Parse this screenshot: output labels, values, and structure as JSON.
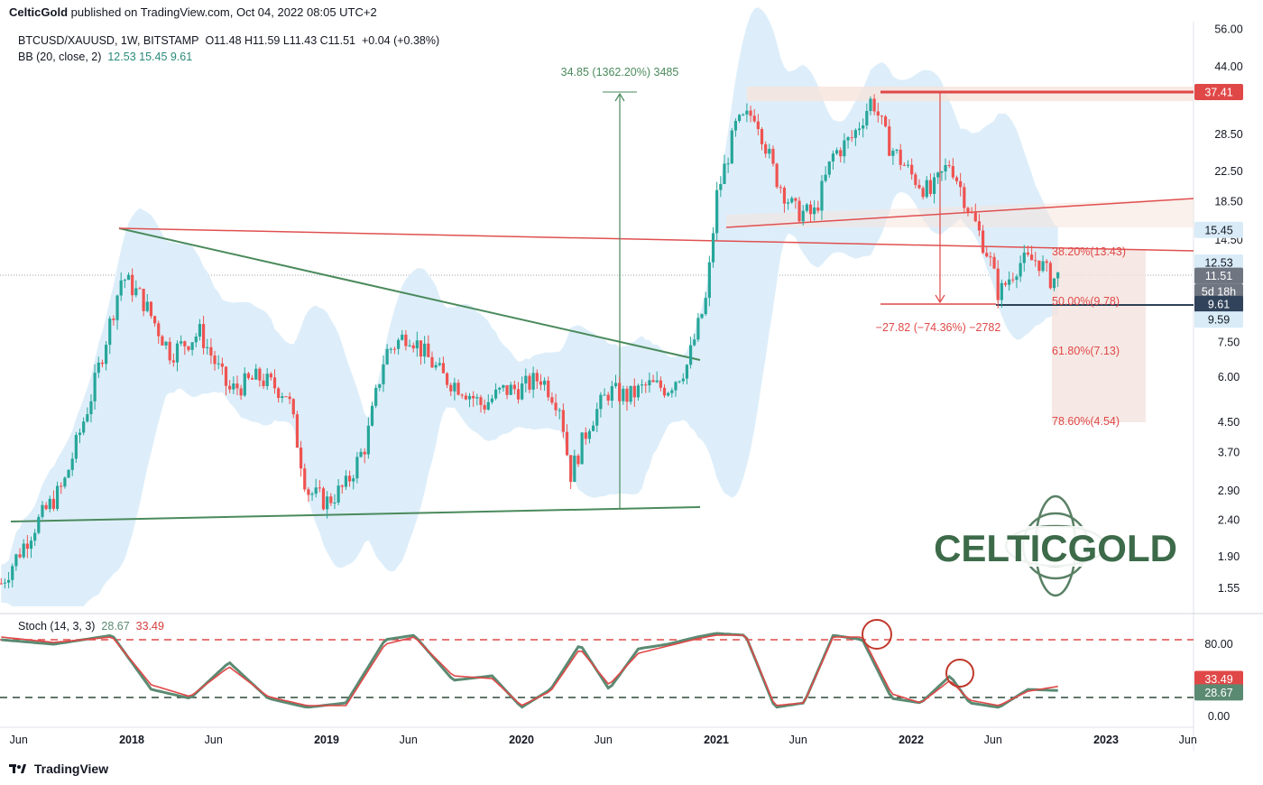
{
  "header": {
    "publisher": "CelticGold",
    "published_text": "published on TradingView.com, Oct 04, 2022 08:05 UTC+2"
  },
  "legend": {
    "symbol_line": "BTCUSD/XAUUSD, 1W, BITSTAMP",
    "ohlc": "O11.48  H11.59  L11.43  C11.51",
    "change": "+0.04 (+0.38%)",
    "bb_label": "BB (20, close, 2)",
    "bb_values": "12.53  15.45  9.61",
    "stoch_label": "Stoch (14, 3, 3)",
    "stoch_k": "28.67",
    "stoch_d": "33.49"
  },
  "annotations": {
    "measure_up": "34.85 (1362.20%) 3485",
    "measure_down": "−27.82 (−74.36%) −2782",
    "fib_38": "38.20%(13.43)",
    "fib_50": "50.00%(9.78)",
    "fib_618": "61.80%(7.13)",
    "fib_786": "78.60%(4.54)"
  },
  "price_badges": [
    {
      "label": "37.41",
      "price": 37.41,
      "bg": "#e04848",
      "fg": "#ffffff"
    },
    {
      "label": "15.45",
      "price": 15.45,
      "bg": "#d8ebf7",
      "fg": "#131722"
    },
    {
      "label": "12.53",
      "price": 12.53,
      "bg": "#d8ebf7",
      "fg": "#131722"
    },
    {
      "label": "11.51",
      "price": 11.51,
      "bg": "#6f7581",
      "fg": "#ffffff"
    },
    {
      "label": "9.61",
      "price": 9.61,
      "bg": "#31435a",
      "fg": "#ffffff"
    },
    {
      "label": "9.59",
      "price": 9.59,
      "bg": "#d8ebf7",
      "fg": "#131722"
    }
  ],
  "countdown_label": "5d 18h",
  "stoch_badges": [
    {
      "label": "33.49",
      "value": 33.49,
      "bg": "#e04848",
      "fg": "#ffffff"
    },
    {
      "label": "28.67",
      "value": 28.67,
      "bg": "#5b8a72",
      "fg": "#ffffff"
    }
  ],
  "watermark": "CELTICGOLD",
  "footer": {
    "brand": "TradingView"
  },
  "colors": {
    "up": "#26a69a",
    "down": "#ef5350",
    "bb_fill": "#ddeefa",
    "trend_green": "#4a8a5c",
    "trend_red": "#e05050",
    "stoch_k": "#5b8a72",
    "stoch_d": "#e04848"
  },
  "chart_data": [
    {
      "type": "line",
      "title": "BTCUSD/XAUUSD, 1W, BITSTAMP",
      "scale": "log",
      "y_ticks": [
        56.0,
        44.0,
        37.41,
        28.5,
        22.5,
        18.5,
        14.5,
        7.5,
        6.0,
        4.5,
        3.7,
        2.9,
        2.4,
        1.9,
        1.55
      ],
      "x_ticks": [
        "Jun",
        "2018",
        "Jun",
        "2019",
        "Jun",
        "2020",
        "Jun",
        "2021",
        "Jun",
        "2022",
        "Jun",
        "2023",
        "Jun"
      ],
      "x_tick_years": [
        2017.42,
        2018.0,
        2018.42,
        2019.0,
        2019.42,
        2020.0,
        2020.42,
        2021.0,
        2021.42,
        2022.0,
        2022.42,
        2023.0,
        2023.42
      ],
      "series": [
        {
          "name": "",
          "x": [
            2017.33,
            2017.5,
            2017.65,
            2017.8,
            2017.95,
            2018.05,
            2018.2,
            2018.35,
            2018.5,
            2018.65,
            2018.8,
            2018.9,
            2019.0,
            2019.1,
            2019.2,
            2019.3,
            2019.42,
            2019.5,
            2019.6,
            2019.7,
            2019.8,
            2019.9,
            2020.0,
            2020.1,
            2020.2,
            2020.25,
            2020.35,
            2020.45,
            2020.55,
            2020.65,
            2020.75,
            2020.85,
            2020.95,
            2021.0,
            2021.1,
            2021.2,
            2021.3,
            2021.4,
            2021.5,
            2021.6,
            2021.7,
            2021.8,
            2021.88,
            2022.0,
            2022.1,
            2022.2,
            2022.3,
            2022.4,
            2022.45,
            2022.55,
            2022.65,
            2022.72,
            2022.76
          ],
          "values": [
            1.6,
            2.3,
            3.0,
            5.5,
            11.5,
            10.0,
            7.0,
            8.0,
            5.5,
            6.0,
            5.4,
            2.9,
            2.7,
            3.0,
            3.9,
            7.0,
            8.0,
            7.0,
            6.0,
            5.6,
            5.0,
            5.5,
            5.6,
            6.0,
            5.0,
            3.2,
            4.5,
            5.5,
            5.3,
            5.7,
            5.6,
            6.5,
            10.0,
            19.0,
            30.0,
            33.0,
            22.0,
            17.5,
            17.0,
            25.0,
            28.0,
            36.0,
            27.0,
            22.0,
            19.5,
            24.0,
            17.5,
            13.0,
            10.2,
            12.5,
            12.8,
            11.2,
            11.51
          ]
        }
      ],
      "levels": {
        "resistance": 37.41,
        "fib_38_2": 13.43,
        "fib_50": 9.78,
        "fib_61_8": 7.13,
        "fib_78_6": 4.54
      }
    },
    {
      "type": "line",
      "title": "Stoch (14, 3, 3)",
      "y_ticks": [
        80.0,
        0.0
      ],
      "ylim": [
        0,
        100
      ],
      "series": [
        {
          "name": "",
          "x": [
            2017.33,
            2017.6,
            2017.9,
            2018.1,
            2018.3,
            2018.5,
            2018.7,
            2018.9,
            2019.1,
            2019.3,
            2019.45,
            2019.65,
            2019.85,
            2020.0,
            2020.15,
            2020.3,
            2020.45,
            2020.6,
            2020.75,
            2020.9,
            2021.0,
            2021.15,
            2021.3,
            2021.45,
            2021.6,
            2021.75,
            2021.9,
            2022.05,
            2022.2,
            2022.3,
            2022.45,
            2022.6,
            2022.76
          ],
          "values": [
            85,
            80,
            90,
            30,
            20,
            60,
            20,
            10,
            15,
            85,
            90,
            40,
            45,
            10,
            30,
            80,
            30,
            75,
            80,
            88,
            92,
            90,
            10,
            15,
            90,
            85,
            20,
            15,
            45,
            15,
            10,
            30,
            28.67
          ]
        },
        {
          "name": "",
          "x": [
            2017.33,
            2017.6,
            2017.9,
            2018.1,
            2018.3,
            2018.5,
            2018.7,
            2018.9,
            2019.1,
            2019.3,
            2019.45,
            2019.65,
            2019.85,
            2020.0,
            2020.15,
            2020.3,
            2020.45,
            2020.6,
            2020.75,
            2020.9,
            2021.0,
            2021.15,
            2021.3,
            2021.45,
            2021.6,
            2021.75,
            2021.9,
            2022.05,
            2022.2,
            2022.3,
            2022.45,
            2022.6,
            2022.76
          ],
          "values": [
            88,
            82,
            88,
            35,
            22,
            55,
            22,
            12,
            12,
            80,
            88,
            45,
            42,
            12,
            28,
            75,
            35,
            70,
            78,
            86,
            90,
            90,
            12,
            15,
            88,
            88,
            25,
            15,
            40,
            18,
            12,
            28,
            33.49
          ]
        }
      ]
    }
  ]
}
